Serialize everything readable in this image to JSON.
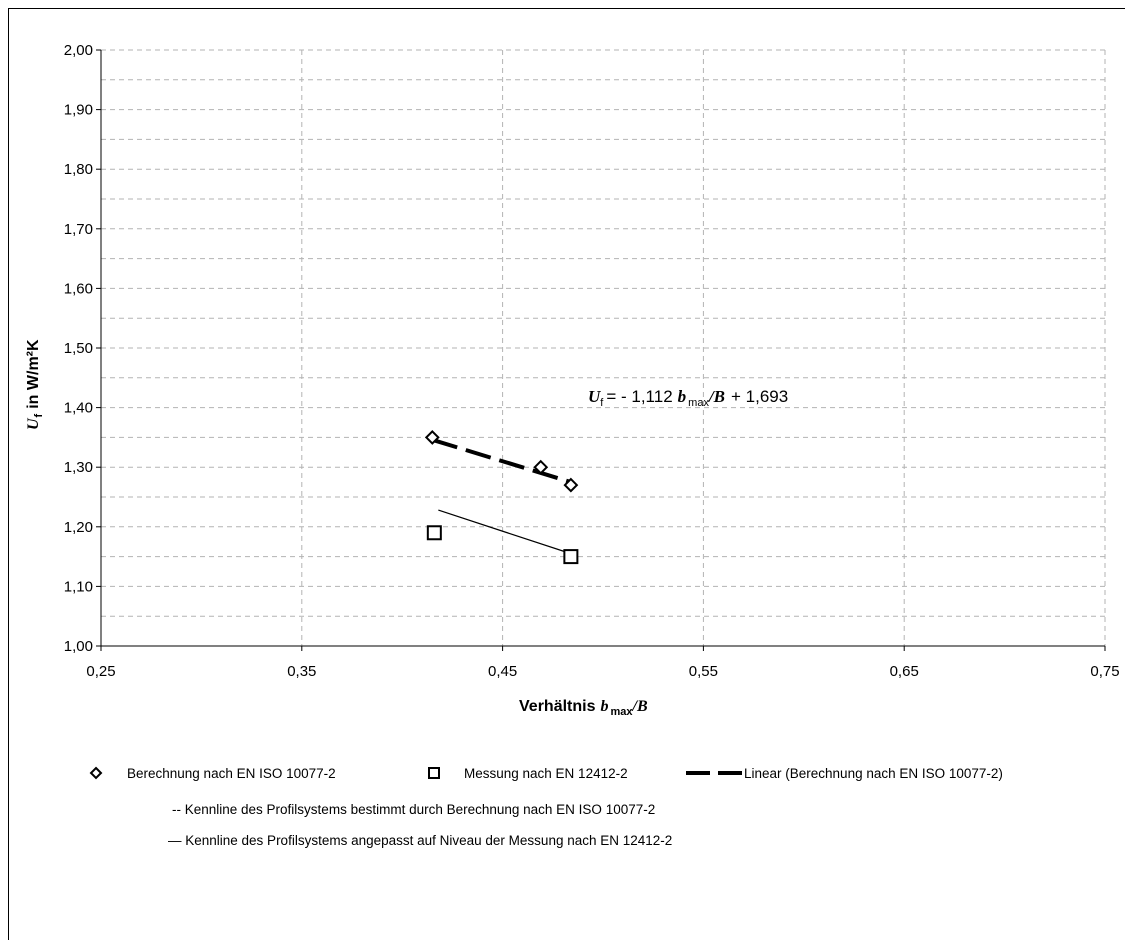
{
  "chart_data": {
    "type": "scatter",
    "xlim": [
      0.25,
      0.75
    ],
    "ylim": [
      1.0,
      2.0
    ],
    "x_ticks": [
      "0,25",
      "0,35",
      "0,45",
      "0,55",
      "0,65",
      "0,75"
    ],
    "y_ticks": [
      "1,00",
      "1,10",
      "1,20",
      "1,30",
      "1,40",
      "1,50",
      "1,60",
      "1,70",
      "1,80",
      "1,90",
      "2,00"
    ],
    "xlabel": {
      "text": "Verhältnis",
      "var": "b",
      "sub": "max",
      "tail": "/B"
    },
    "ylabel": {
      "var": "U",
      "sub": "f",
      "text": "in W/m²K"
    },
    "grid": true,
    "annotation": {
      "var": "U",
      "sub": "f",
      "eq": "= - 1,112",
      "var2": "b",
      "sub2": "max",
      "tail": "/B",
      "rest": "+ 1,693"
    },
    "series": [
      {
        "name": "Berechnung nach EN ISO 10077-2",
        "marker": "diamond",
        "points": [
          [
            0.415,
            1.35
          ],
          [
            0.469,
            1.3
          ],
          [
            0.484,
            1.27
          ]
        ]
      },
      {
        "name": "Messung nach EN 12412-2",
        "marker": "square",
        "points": [
          [
            0.416,
            1.19
          ],
          [
            0.484,
            1.15
          ]
        ]
      }
    ],
    "trend_dashed": {
      "name": "Linear (Berechnung nach EN ISO 10077-2)",
      "x": [
        0.415,
        0.484
      ],
      "y": [
        1.346,
        1.275
      ]
    },
    "trend_solid": {
      "x": [
        0.418,
        0.484
      ],
      "y": [
        1.228,
        1.155
      ]
    },
    "notes": [
      "--  Kennline des Profilsystems bestimmt durch Berechnung nach EN ISO 10077-2",
      "— Kennline des Profilsystems angepasst auf Niveau der Messung nach EN 12412-2"
    ]
  }
}
